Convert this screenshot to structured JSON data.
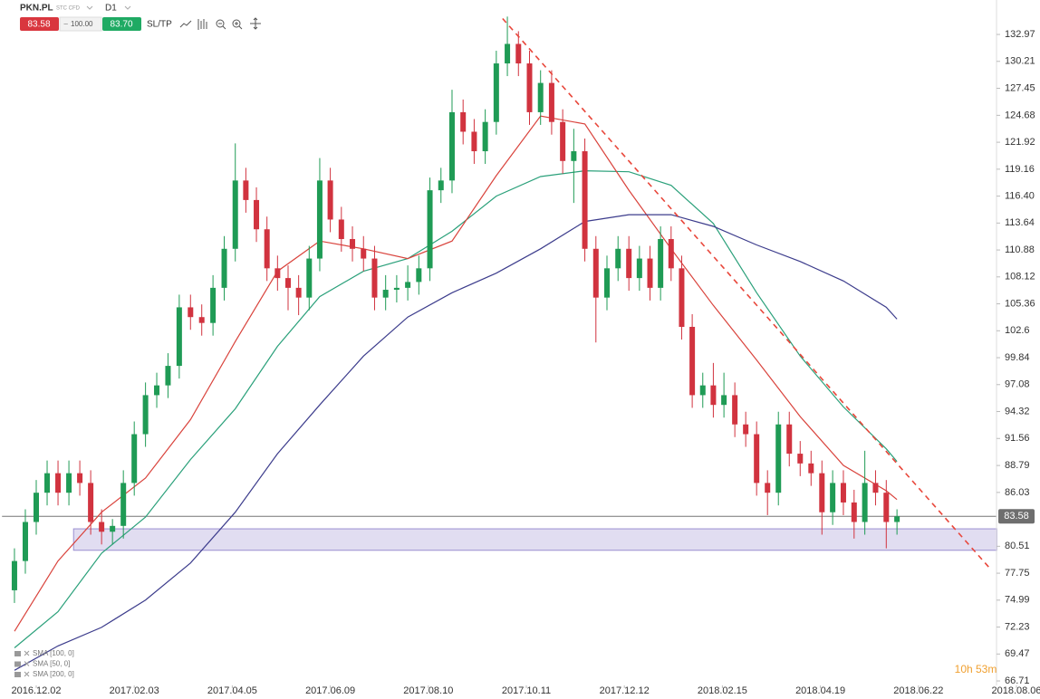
{
  "toolbar": {
    "symbol": "PKN.PL",
    "market": "STC CFD",
    "interval": "D1",
    "sell": "83.58",
    "volume": "100.00",
    "buy": "83.70",
    "sltp": "SL/TP"
  },
  "chart_data": {
    "type": "candlestick",
    "x": [
      "2016.11.18",
      "2016.11.25",
      "2016.12.02",
      "2016.12.09",
      "2016.12.16",
      "2016.12.23",
      "2016.12.30",
      "2017.01.06",
      "2017.01.13",
      "2017.01.20",
      "2017.01.27",
      "2017.02.03",
      "2017.02.10",
      "2017.02.17",
      "2017.02.24",
      "2017.03.03",
      "2017.03.10",
      "2017.03.17",
      "2017.03.24",
      "2017.03.31",
      "2017.04.07",
      "2017.04.14",
      "2017.04.21",
      "2017.04.28",
      "2017.05.05",
      "2017.05.12",
      "2017.05.19",
      "2017.05.26",
      "2017.06.02",
      "2017.06.09",
      "2017.06.16",
      "2017.06.23",
      "2017.06.30",
      "2017.07.07",
      "2017.07.14",
      "2017.07.21",
      "2017.07.28",
      "2017.08.04",
      "2017.08.11",
      "2017.08.18",
      "2017.08.25",
      "2017.09.01",
      "2017.09.08",
      "2017.09.15",
      "2017.09.22",
      "2017.09.29",
      "2017.10.06",
      "2017.10.13",
      "2017.10.20",
      "2017.10.27",
      "2017.11.03",
      "2017.11.10",
      "2017.11.17",
      "2017.11.24",
      "2017.12.01",
      "2017.12.08",
      "2017.12.15",
      "2017.12.22",
      "2017.12.29",
      "2018.01.05",
      "2018.01.12",
      "2018.01.19",
      "2018.01.26",
      "2018.02.02",
      "2018.02.09",
      "2018.02.16",
      "2018.02.23",
      "2018.03.02",
      "2018.03.09",
      "2018.03.16",
      "2018.03.23",
      "2018.03.30",
      "2018.04.06",
      "2018.04.13",
      "2018.04.20",
      "2018.04.27",
      "2018.05.04",
      "2018.05.11",
      "2018.05.18",
      "2018.05.25",
      "2018.06.01",
      "2018.06.08"
    ],
    "open": [
      76,
      79,
      83,
      86,
      88,
      86,
      88,
      87,
      83,
      82,
      82.6,
      87,
      92,
      96,
      97,
      99,
      105,
      104,
      103.4,
      107,
      111,
      118,
      116,
      113,
      109,
      108,
      107,
      106,
      110,
      118,
      114,
      112,
      111,
      110,
      106,
      106.8,
      107,
      107.6,
      109,
      117,
      118,
      125,
      123,
      121,
      124,
      130,
      132,
      130,
      125,
      128,
      124,
      120,
      121,
      111,
      106,
      109,
      111,
      108,
      110,
      107,
      112,
      109,
      103,
      96,
      97,
      95,
      96,
      93,
      92,
      87,
      86,
      93,
      90,
      89,
      88,
      84,
      87,
      85,
      83,
      87,
      86,
      83
    ],
    "high": [
      80.3,
      84.3,
      87.3,
      89.3,
      89.3,
      89.3,
      89.3,
      88.3,
      84.3,
      83.3,
      88.3,
      93.3,
      97.3,
      98.3,
      100.3,
      106.3,
      106.3,
      105.3,
      108.3,
      112.3,
      121.8,
      119.3,
      117.3,
      114.3,
      110.3,
      109.3,
      108.3,
      111.3,
      120.3,
      119.3,
      115.3,
      113.3,
      112.3,
      111.3,
      108.3,
      108.3,
      109.3,
      110.3,
      118.3,
      119.3,
      127.3,
      126.3,
      124.3,
      125.3,
      131.3,
      134.8,
      133.3,
      131.3,
      129.3,
      129.3,
      125.3,
      123.3,
      122.3,
      112.3,
      110.3,
      112.3,
      112.3,
      111.3,
      111.3,
      113.3,
      113.3,
      110.3,
      104.3,
      98.3,
      99.3,
      98.3,
      97.3,
      94.3,
      93.3,
      88.3,
      94.3,
      94.3,
      91.3,
      90.3,
      89.3,
      88.3,
      88.3,
      86.3,
      90.3,
      88.3,
      87.3,
      84.3
    ],
    "low": [
      74.7,
      77.7,
      81.7,
      84.7,
      84.7,
      84.7,
      85.7,
      81.7,
      80.7,
      80.7,
      81.3,
      85.7,
      90.7,
      94.7,
      95.7,
      97.7,
      102.7,
      102.1,
      102.1,
      105.7,
      109.7,
      114.7,
      111.7,
      107.7,
      106.7,
      104.7,
      104.2,
      104.7,
      108.7,
      112.7,
      110.7,
      109.7,
      108.7,
      104.7,
      104.7,
      105.5,
      105.7,
      106.3,
      107.7,
      115.7,
      116.7,
      121.7,
      119.7,
      119.7,
      122.7,
      128.7,
      128.7,
      123.7,
      123.7,
      122.7,
      118.7,
      115.7,
      109.7,
      101.4,
      104.7,
      107.7,
      106.7,
      106.7,
      105.7,
      105.7,
      107.7,
      101.7,
      94.7,
      94.7,
      93.7,
      93.7,
      91.7,
      90.7,
      85.7,
      83.7,
      84.7,
      88.7,
      87.7,
      86.7,
      81.7,
      82.7,
      83.7,
      81.3,
      81.7,
      84.7,
      80.3,
      81.7
    ],
    "close": [
      79,
      83,
      86,
      88,
      86,
      88,
      87,
      83,
      82,
      82.6,
      87,
      92,
      96,
      97,
      99,
      105,
      104,
      103.4,
      107,
      111,
      118,
      116,
      113,
      109,
      108,
      107,
      106,
      110,
      118,
      114,
      112,
      111,
      110,
      106,
      106.8,
      107,
      107.6,
      109,
      117,
      118,
      125,
      123,
      121,
      124,
      130,
      132,
      130,
      125,
      128,
      124,
      120,
      121,
      111,
      106,
      109,
      111,
      108,
      110,
      107,
      112,
      109,
      103,
      96,
      97,
      95,
      96,
      93,
      92,
      87,
      86,
      93,
      90,
      89,
      88,
      84,
      87,
      85,
      83,
      87,
      86,
      83,
      83.58
    ],
    "up_color": "#1f9b55",
    "down_color": "#d1333f",
    "overlays": [
      {
        "name": "SMA [100, 0]",
        "color": "#2aa07a",
        "x": [
          "2016.11.18",
          "2016.12.16",
          "2017.01.13",
          "2017.02.10",
          "2017.03.10",
          "2017.04.07",
          "2017.05.05",
          "2017.06.02",
          "2017.06.30",
          "2017.07.28",
          "2017.08.25",
          "2017.09.22",
          "2017.10.20",
          "2017.11.17",
          "2017.12.15",
          "2018.01.12",
          "2018.02.09",
          "2018.03.09",
          "2018.04.06",
          "2018.05.04",
          "2018.06.01",
          "2018.06.08"
        ],
        "values": [
          70.1,
          73.8,
          79.8,
          83.5,
          89.4,
          94.6,
          101,
          106.1,
          108.7,
          110,
          112.8,
          116.4,
          118.4,
          119,
          118.9,
          117.5,
          113.6,
          106.5,
          100,
          94.8,
          90.5,
          89.2
        ]
      },
      {
        "name": "SMA [50, 0]",
        "color": "#d9433c",
        "x": [
          "2016.11.18",
          "2016.12.16",
          "2017.01.13",
          "2017.02.10",
          "2017.03.10",
          "2017.04.07",
          "2017.05.05",
          "2017.06.02",
          "2017.06.30",
          "2017.07.28",
          "2017.08.25",
          "2017.09.22",
          "2017.10.20",
          "2017.11.17",
          "2017.12.15",
          "2018.01.12",
          "2018.02.09",
          "2018.03.09",
          "2018.04.06",
          "2018.05.04",
          "2018.06.01",
          "2018.06.08"
        ],
        "values": [
          71.8,
          79,
          84,
          87.5,
          93.5,
          101.5,
          108.7,
          111.8,
          111,
          110,
          111.8,
          118.5,
          124.6,
          123.8,
          117,
          111,
          105.2,
          99.6,
          93.8,
          88.8,
          86.2,
          85.3
        ]
      },
      {
        "name": "SMA [200, 0]",
        "color": "#3c3c8c",
        "x": [
          "2016.11.18",
          "2016.12.16",
          "2017.01.13",
          "2017.02.10",
          "2017.03.10",
          "2017.04.07",
          "2017.05.05",
          "2017.06.02",
          "2017.06.30",
          "2017.07.28",
          "2017.08.25",
          "2017.09.22",
          "2017.10.20",
          "2017.11.17",
          "2017.12.15",
          "2018.01.12",
          "2018.02.09",
          "2018.03.09",
          "2018.04.06",
          "2018.05.04",
          "2018.06.01",
          "2018.06.08"
        ],
        "values": [
          67.8,
          70.3,
          72.2,
          75,
          78.8,
          84,
          90,
          95,
          100,
          104,
          106.5,
          108.5,
          111,
          113.8,
          114.5,
          114.5,
          113.3,
          111.4,
          109.7,
          107.7,
          105,
          103.8
        ]
      }
    ],
    "trendline": {
      "x": [
        "2017.09.26",
        "2018.07.25"
      ],
      "values": [
        134.6,
        78.2
      ],
      "color": "#e8463a"
    },
    "zone": {
      "x_start": "2016.12.26",
      "range": [
        80.1,
        82.3
      ],
      "color": "#9a8fd0"
    },
    "current_price": 83.58,
    "countdown": "10h 53m",
    "xlim": [
      "2016.11.10",
      "2018.07.28"
    ],
    "xticks": [
      "2016.12.02",
      "2017.02.03",
      "2017.04.05",
      "2017.06.09",
      "2017.08.10",
      "2017.10.11",
      "2017.12.12",
      "2018.02.15",
      "2018.04.19",
      "2018.06.22",
      "2018.08.06"
    ],
    "ylim": [
      66.25,
      136.5
    ],
    "yticks": [
      132.97,
      130.21,
      127.45,
      124.68,
      121.92,
      119.16,
      {
        "value": 116.4,
        "label": "116.40"
      },
      113.64,
      110.88,
      108.12,
      105.36,
      102.6,
      99.84,
      97.08,
      94.32,
      91.56,
      88.79,
      86.03,
      80.51,
      77.75,
      74.99,
      72.23,
      69.47,
      66.71
    ]
  }
}
